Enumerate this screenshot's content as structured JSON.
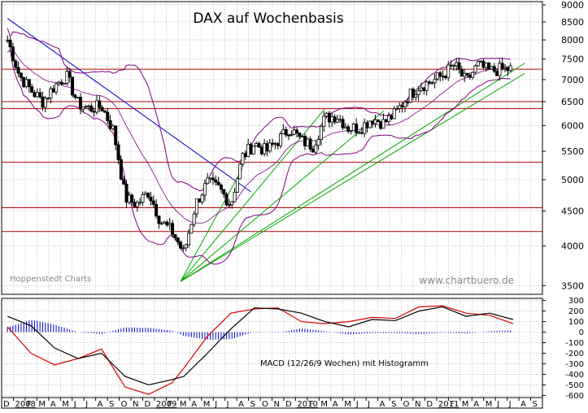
{
  "colors": {
    "background": "#ffffff",
    "grid": "#9a9a9a",
    "axis": "#000000",
    "bar": "#000000",
    "support_lines": "#b30000",
    "bollinger": "#800080",
    "downtrend": "#0000cc",
    "uptrend": "#00aa00",
    "macd_line": "#000000",
    "signal_line": "#dd0000",
    "histogram": "#0000cc",
    "watermark": "#888888"
  },
  "chart_data": [
    {
      "type": "candlestick",
      "title": "DAX auf Wochenbasis",
      "source_left": "Hoppenstedt Charts",
      "source_right": "www.chartbuero.de",
      "ylim": [
        3400,
        9100
      ],
      "y_ticks": [
        3500,
        4000,
        4500,
        5000,
        5500,
        6000,
        6500,
        7000,
        7500,
        8000,
        8500,
        9000
      ],
      "grid": true,
      "support_levels": [
        7250,
        6500,
        6350,
        5300,
        4550,
        4200
      ],
      "weekly_close": [
        [
          "2007-12",
          8000
        ],
        [
          "2008-01",
          7100
        ],
        [
          "2008-02",
          6750
        ],
        [
          "2008-03",
          6500
        ],
        [
          "2008-04",
          6850
        ],
        [
          "2008-05",
          7100
        ],
        [
          "2008-06",
          6450
        ],
        [
          "2008-07",
          6350
        ],
        [
          "2008-08",
          6400
        ],
        [
          "2008-09",
          5900
        ],
        [
          "2008-10",
          4700
        ],
        [
          "2008-11",
          4600
        ],
        [
          "2008-12",
          4800
        ],
        [
          "2009-01",
          4350
        ],
        [
          "2009-02",
          4200
        ],
        [
          "2009-03",
          3900
        ],
        [
          "2009-04",
          4600
        ],
        [
          "2009-05",
          4950
        ],
        [
          "2009-06",
          4850
        ],
        [
          "2009-07",
          4600
        ],
        [
          "2009-08",
          5400
        ],
        [
          "2009-09",
          5650
        ],
        [
          "2009-10",
          5500
        ],
        [
          "2009-11",
          5700
        ],
        [
          "2009-12",
          5950
        ],
        [
          "2010-01",
          5700
        ],
        [
          "2010-02",
          5600
        ],
        [
          "2010-03",
          6150
        ],
        [
          "2010-04",
          6200
        ],
        [
          "2010-05",
          5950
        ],
        [
          "2010-06",
          5950
        ],
        [
          "2010-07",
          6150
        ],
        [
          "2010-08",
          6050
        ],
        [
          "2010-09",
          6250
        ],
        [
          "2010-10",
          6600
        ],
        [
          "2010-11",
          6850
        ],
        [
          "2010-12",
          6950
        ],
        [
          "2011-01",
          7100
        ],
        [
          "2011-02",
          7350
        ],
        [
          "2011-03",
          6950
        ],
        [
          "2011-04",
          7350
        ],
        [
          "2011-05",
          7200
        ],
        [
          "2011-06",
          7250
        ],
        [
          "2011-07",
          7250
        ]
      ]
    },
    {
      "type": "line",
      "title": "MACD (12/26/9 Wochen) mit Histogramm",
      "ylim": [
        -620,
        320
      ],
      "y_ticks": [
        300,
        200,
        100,
        0,
        -100,
        -200,
        -300,
        -400,
        -500,
        -600
      ],
      "series": [
        {
          "role": "macd",
          "values": [
            [
              "2007-12",
              150
            ],
            [
              "2008-02",
              60
            ],
            [
              "2008-04",
              -150
            ],
            [
              "2008-06",
              -250
            ],
            [
              "2008-08",
              -200
            ],
            [
              "2008-10",
              -420
            ],
            [
              "2008-12",
              -500
            ],
            [
              "2009-02",
              -450
            ],
            [
              "2009-03",
              -420
            ],
            [
              "2009-05",
              -200
            ],
            [
              "2009-07",
              30
            ],
            [
              "2009-09",
              230
            ],
            [
              "2009-11",
              220
            ],
            [
              "2010-01",
              180
            ],
            [
              "2010-03",
              100
            ],
            [
              "2010-05",
              50
            ],
            [
              "2010-07",
              120
            ],
            [
              "2010-09",
              110
            ],
            [
              "2010-11",
              200
            ],
            [
              "2011-01",
              240
            ],
            [
              "2011-03",
              150
            ],
            [
              "2011-05",
              180
            ],
            [
              "2011-07",
              120
            ]
          ]
        },
        {
          "role": "signal",
          "values": [
            [
              "2007-12",
              50
            ],
            [
              "2008-02",
              -200
            ],
            [
              "2008-04",
              -310
            ],
            [
              "2008-06",
              -250
            ],
            [
              "2008-08",
              -160
            ],
            [
              "2008-10",
              -520
            ],
            [
              "2008-12",
              -590
            ],
            [
              "2009-02",
              -480
            ],
            [
              "2009-03",
              -340
            ],
            [
              "2009-05",
              -40
            ],
            [
              "2009-07",
              180
            ],
            [
              "2009-09",
              220
            ],
            [
              "2009-11",
              230
            ],
            [
              "2010-01",
              100
            ],
            [
              "2010-03",
              80
            ],
            [
              "2010-05",
              100
            ],
            [
              "2010-07",
              140
            ],
            [
              "2010-09",
              130
            ],
            [
              "2010-11",
              240
            ],
            [
              "2011-01",
              250
            ],
            [
              "2011-03",
              180
            ],
            [
              "2011-05",
              160
            ],
            [
              "2011-07",
              80
            ]
          ]
        }
      ]
    }
  ],
  "time_axis": [
    {
      "label": "D",
      "date": "2007-12"
    },
    {
      "label": "2008",
      "date": "2008-01"
    },
    {
      "label": "F",
      "date": "2008-02"
    },
    {
      "label": "M",
      "date": "2008-03"
    },
    {
      "label": "A",
      "date": "2008-04"
    },
    {
      "label": "M",
      "date": "2008-05"
    },
    {
      "label": "J",
      "date": "2008-06"
    },
    {
      "label": "J",
      "date": "2008-07"
    },
    {
      "label": "A",
      "date": "2008-08"
    },
    {
      "label": "S",
      "date": "2008-09"
    },
    {
      "label": "O",
      "date": "2008-10"
    },
    {
      "label": "N",
      "date": "2008-11"
    },
    {
      "label": "D",
      "date": "2008-12"
    },
    {
      "label": "2009",
      "date": "2009-01"
    },
    {
      "label": "F",
      "date": "2009-02"
    },
    {
      "label": "M",
      "date": "2009-03"
    },
    {
      "label": "A",
      "date": "2009-04"
    },
    {
      "label": "M",
      "date": "2009-05"
    },
    {
      "label": "J",
      "date": "2009-06"
    },
    {
      "label": "J",
      "date": "2009-07"
    },
    {
      "label": "A",
      "date": "2009-08"
    },
    {
      "label": "S",
      "date": "2009-09"
    },
    {
      "label": "O",
      "date": "2009-10"
    },
    {
      "label": "N",
      "date": "2009-11"
    },
    {
      "label": "D",
      "date": "2009-12"
    },
    {
      "label": "2010",
      "date": "2010-01"
    },
    {
      "label": "F",
      "date": "2010-02"
    },
    {
      "label": "M",
      "date": "2010-03"
    },
    {
      "label": "A",
      "date": "2010-04"
    },
    {
      "label": "M",
      "date": "2010-05"
    },
    {
      "label": "J",
      "date": "2010-06"
    },
    {
      "label": "J",
      "date": "2010-07"
    },
    {
      "label": "A",
      "date": "2010-08"
    },
    {
      "label": "S",
      "date": "2010-09"
    },
    {
      "label": "O",
      "date": "2010-10"
    },
    {
      "label": "N",
      "date": "2010-11"
    },
    {
      "label": "D",
      "date": "2010-12"
    },
    {
      "label": "2011",
      "date": "2011-01"
    },
    {
      "label": "F",
      "date": "2011-02"
    },
    {
      "label": "M",
      "date": "2011-03"
    },
    {
      "label": "A",
      "date": "2011-04"
    },
    {
      "label": "M",
      "date": "2011-05"
    },
    {
      "label": "J",
      "date": "2011-06"
    },
    {
      "label": "J",
      "date": "2011-07"
    },
    {
      "label": "A",
      "date": "2011-08"
    },
    {
      "label": "S",
      "date": "2011-09"
    }
  ]
}
